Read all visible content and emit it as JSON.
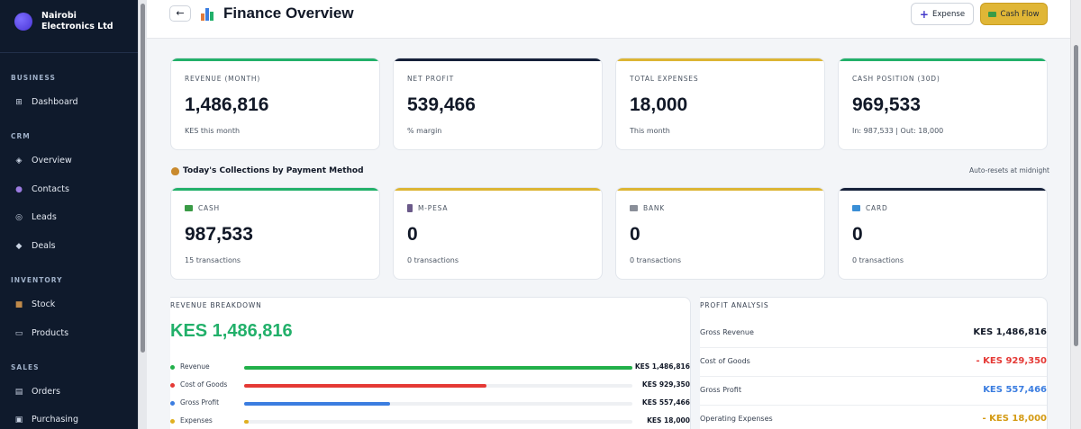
{
  "sidebar": {
    "company": "Nairobi Electronics Ltd",
    "sections": [
      {
        "title": "BUSINESS",
        "items": [
          {
            "label": "Dashboard",
            "icon": "grid-icon"
          }
        ]
      },
      {
        "title": "CRM",
        "items": [
          {
            "label": "Overview",
            "icon": "diamond-icon"
          },
          {
            "label": "Contacts",
            "icon": "person-icon"
          },
          {
            "label": "Leads",
            "icon": "target-icon"
          },
          {
            "label": "Deals",
            "icon": "diamond-icon"
          }
        ]
      },
      {
        "title": "INVENTORY",
        "items": [
          {
            "label": "Stock",
            "icon": "box-icon"
          },
          {
            "label": "Products",
            "icon": "tag-icon"
          }
        ]
      },
      {
        "title": "SALES",
        "items": [
          {
            "label": "Orders",
            "icon": "clipboard-icon"
          },
          {
            "label": "Purchasing",
            "icon": "cart-icon"
          }
        ]
      }
    ]
  },
  "header": {
    "back_label": "←",
    "title": "Finance Overview",
    "expense_label": "Expense",
    "expense_icon": "+",
    "cashflow_label": "Cash Flow"
  },
  "kpis": [
    {
      "label": "REVENUE (MONTH)",
      "value": "1,486,816",
      "sub": "KES this month",
      "color": "#22b06a"
    },
    {
      "label": "NET PROFIT",
      "value": "539,466",
      "sub": "% margin",
      "color": "#16213a"
    },
    {
      "label": "TOTAL EXPENSES",
      "value": "18,000",
      "sub": "This month",
      "color": "#dcb534"
    },
    {
      "label": "CASH POSITION (30D)",
      "value": "969,533",
      "sub": "In: 987,533 | Out: 18,000",
      "color": "#22b06a"
    }
  ],
  "collections": {
    "title": "Today's Collections by Payment Method",
    "note": "Auto-resets at midnight",
    "methods": [
      {
        "label": "CASH",
        "value": "987,533",
        "sub": "15 transactions",
        "color": "#22b06a",
        "icon_color": "#3a9b46"
      },
      {
        "label": "M-PESA",
        "value": "0",
        "sub": "0 transactions",
        "color": "#dcb534",
        "icon_color": "#6b5a8a"
      },
      {
        "label": "BANK",
        "value": "0",
        "sub": "0 transactions",
        "color": "#dcb534",
        "icon_color": "#8a8f99"
      },
      {
        "label": "CARD",
        "value": "0",
        "sub": "0 transactions",
        "color": "#16213a",
        "icon_color": "#3a8fd6"
      }
    ]
  },
  "revenue_breakdown": {
    "title": "REVENUE BREAKDOWN",
    "total": "KES 1,486,816",
    "rows": [
      {
        "label": "Revenue",
        "amount": "KES 1,486,816",
        "fraction": 1.0,
        "color": "#22b04a"
      },
      {
        "label": "Cost of Goods",
        "amount": "KES 929,350",
        "fraction": 0.625,
        "color": "#e53935"
      },
      {
        "label": "Gross Profit",
        "amount": "KES 557,466",
        "fraction": 0.375,
        "color": "#3b7de0"
      },
      {
        "label": "Expenses",
        "amount": "KES 18,000",
        "fraction": 0.012,
        "color": "#e0b020"
      }
    ]
  },
  "profit_analysis": {
    "title": "PROFIT ANALYSIS",
    "rows": [
      {
        "label": "Gross Revenue",
        "value": "KES 1,486,816",
        "color": "#111827"
      },
      {
        "label": "Cost of Goods",
        "value": "- KES 929,350",
        "color": "#e53935"
      },
      {
        "label": "Gross Profit",
        "value": "KES 557,466",
        "color": "#3b7de0"
      },
      {
        "label": "Operating Expenses",
        "value": "- KES 18,000",
        "color": "#d49a12"
      }
    ]
  }
}
